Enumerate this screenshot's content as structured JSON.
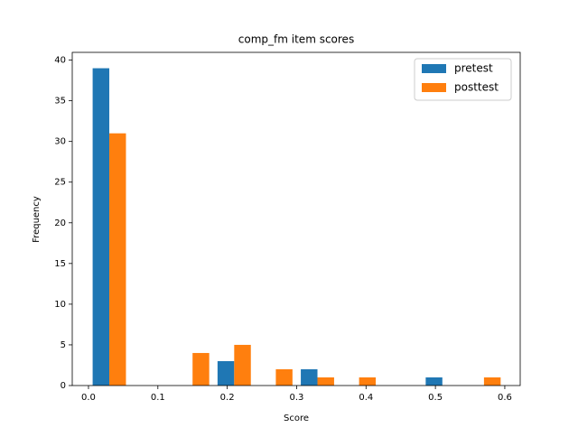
{
  "chart_data": {
    "type": "histogram",
    "title": "comp_fm item scores",
    "x_label": "Score",
    "y_label": "Frequency",
    "bins": [
      0,
      0.06,
      0.12,
      0.18,
      0.24,
      0.3,
      0.36,
      0.42,
      0.48,
      0.54,
      0.6
    ],
    "series": [
      {
        "name": "pretest",
        "color": "#1f77b4",
        "values": [
          39,
          0,
          0,
          3,
          0,
          2,
          0,
          0,
          1,
          0
        ]
      },
      {
        "name": "posttest",
        "color": "#ff7f0e",
        "values": [
          31,
          0,
          4,
          5,
          2,
          1,
          1,
          0,
          0,
          1
        ]
      }
    ],
    "xlim": [
      -0.0234,
      0.6222
    ],
    "ylim": [
      0,
      40.95
    ],
    "xticks": [
      {
        "value": 0,
        "label": "0.0"
      },
      0.1,
      0.2,
      0.3,
      0.4,
      0.5,
      0.6
    ],
    "yticks": [
      0,
      5,
      10,
      15,
      20,
      25,
      30,
      35,
      40
    ],
    "legend": "upper right"
  }
}
